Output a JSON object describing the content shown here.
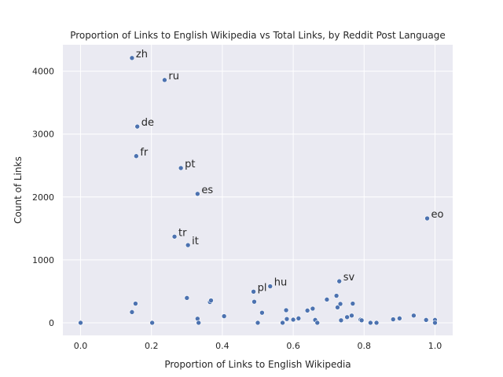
{
  "chart_data": {
    "type": "scatter",
    "title": "Proportion of Links to English Wikipedia vs Total Links, by Reddit Post Language",
    "xlabel": "Proportion of Links to English Wikipedia",
    "ylabel": "Count of Links",
    "xlim": [
      -0.05,
      1.05
    ],
    "ylim": [
      -200,
      4420
    ],
    "xticks": [
      0.0,
      0.2,
      0.4,
      0.6,
      0.8,
      1.0
    ],
    "xtick_labels": [
      "0.0",
      "0.2",
      "0.4",
      "0.6",
      "0.8",
      "1.0"
    ],
    "yticks": [
      0,
      1000,
      2000,
      3000,
      4000
    ],
    "ytick_labels": [
      "0",
      "1000",
      "2000",
      "3000",
      "4000"
    ],
    "grid": true,
    "point_color": "#4c72b0",
    "background_color": "#eaeaf2",
    "labeled_points": [
      {
        "label": "zh",
        "x": 0.145,
        "y": 4210
      },
      {
        "label": "ru",
        "x": 0.237,
        "y": 3860
      },
      {
        "label": "de",
        "x": 0.16,
        "y": 3120
      },
      {
        "label": "fr",
        "x": 0.157,
        "y": 2650
      },
      {
        "label": "pt",
        "x": 0.283,
        "y": 2460
      },
      {
        "label": "es",
        "x": 0.33,
        "y": 2050
      },
      {
        "label": "eo",
        "x": 0.978,
        "y": 1660
      },
      {
        "label": "tr",
        "x": 0.265,
        "y": 1370
      },
      {
        "label": "it",
        "x": 0.303,
        "y": 1235
      },
      {
        "label": "sv",
        "x": 0.73,
        "y": 660
      },
      {
        "label": "hu",
        "x": 0.535,
        "y": 580
      },
      {
        "label": "pl",
        "x": 0.488,
        "y": 495
      }
    ],
    "unlabeled_points": [
      {
        "x": 0.0,
        "y": 0
      },
      {
        "x": 0.145,
        "y": 170
      },
      {
        "x": 0.155,
        "y": 305
      },
      {
        "x": 0.202,
        "y": 0
      },
      {
        "x": 0.3,
        "y": 395
      },
      {
        "x": 0.33,
        "y": 65
      },
      {
        "x": 0.333,
        "y": 0
      },
      {
        "x": 0.365,
        "y": 330
      },
      {
        "x": 0.368,
        "y": 355
      },
      {
        "x": 0.405,
        "y": 105
      },
      {
        "x": 0.49,
        "y": 335
      },
      {
        "x": 0.5,
        "y": 0
      },
      {
        "x": 0.512,
        "y": 160
      },
      {
        "x": 0.57,
        "y": 0
      },
      {
        "x": 0.58,
        "y": 200
      },
      {
        "x": 0.582,
        "y": 60
      },
      {
        "x": 0.6,
        "y": 50
      },
      {
        "x": 0.615,
        "y": 70
      },
      {
        "x": 0.64,
        "y": 195
      },
      {
        "x": 0.655,
        "y": 225
      },
      {
        "x": 0.662,
        "y": 45
      },
      {
        "x": 0.668,
        "y": 0
      },
      {
        "x": 0.695,
        "y": 370
      },
      {
        "x": 0.722,
        "y": 430
      },
      {
        "x": 0.725,
        "y": 245
      },
      {
        "x": 0.733,
        "y": 300
      },
      {
        "x": 0.735,
        "y": 40
      },
      {
        "x": 0.752,
        "y": 90
      },
      {
        "x": 0.765,
        "y": 115
      },
      {
        "x": 0.768,
        "y": 305
      },
      {
        "x": 0.79,
        "y": 50
      },
      {
        "x": 0.793,
        "y": 40
      },
      {
        "x": 0.818,
        "y": 0
      },
      {
        "x": 0.835,
        "y": 0
      },
      {
        "x": 0.882,
        "y": 55
      },
      {
        "x": 0.9,
        "y": 70
      },
      {
        "x": 0.94,
        "y": 115
      },
      {
        "x": 0.975,
        "y": 45
      },
      {
        "x": 1.0,
        "y": 45
      },
      {
        "x": 1.0,
        "y": 0
      }
    ]
  }
}
